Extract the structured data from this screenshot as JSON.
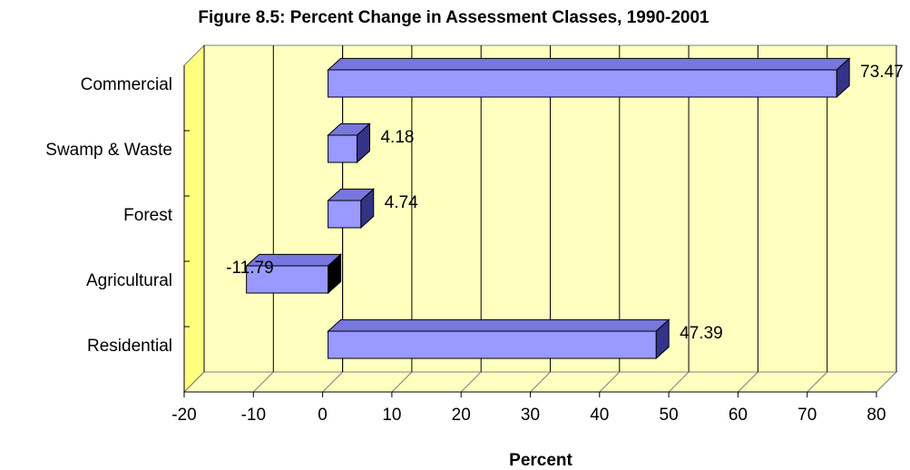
{
  "chart_data": {
    "type": "bar",
    "orientation": "horizontal",
    "title": "Figure 8.5: Percent Change in Assessment Classes, 1990-2001",
    "x_label": "Percent",
    "categories": [
      "Commercial",
      "Swamp & Waste",
      "Forest",
      "Agricultural",
      "Residential"
    ],
    "values": [
      73.47,
      4.18,
      4.74,
      -11.79,
      47.39
    ],
    "color": "#9999ff",
    "xlim": [
      -20,
      80
    ],
    "xticks": [
      -20,
      -10,
      0,
      10,
      20,
      30,
      40,
      50,
      60,
      70,
      80
    ],
    "grid": true
  }
}
